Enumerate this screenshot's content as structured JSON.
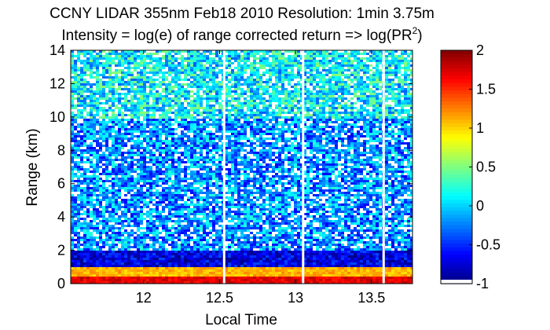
{
  "chart_data": {
    "type": "heatmap",
    "title": "CCNY LIDAR 355nm Feb18 2010 Resolution: 1min 3.75m",
    "subtitle_prefix": "Intensity = log(e) of range corrected return => log(PR",
    "subtitle_superscript": "2",
    "subtitle_suffix": ")",
    "xlabel": "Local Time",
    "ylabel": "Range (km)",
    "xlim": [
      11.52,
      13.77
    ],
    "ylim": [
      0,
      14
    ],
    "xticks": [
      {
        "value": 12.0,
        "label": "12"
      },
      {
        "value": 12.5,
        "label": "12.5"
      },
      {
        "value": 13.0,
        "label": "13"
      },
      {
        "value": 13.5,
        "label": "13.5"
      }
    ],
    "yticks": [
      {
        "value": 0,
        "label": "0"
      },
      {
        "value": 2,
        "label": "2"
      },
      {
        "value": 4,
        "label": "4"
      },
      {
        "value": 6,
        "label": "6"
      },
      {
        "value": 8,
        "label": "8"
      },
      {
        "value": 10,
        "label": "10"
      },
      {
        "value": 12,
        "label": "12"
      },
      {
        "value": 14,
        "label": "14"
      }
    ],
    "data_gaps_x": [
      12.53,
      13.05,
      13.58
    ],
    "colorbar": {
      "colormap": "jet",
      "range": [
        -1,
        2
      ],
      "ticks": [
        {
          "value": 2,
          "label": "2"
        },
        {
          "value": 1.5,
          "label": "1.5"
        },
        {
          "value": 1,
          "label": "1"
        },
        {
          "value": 0.5,
          "label": "0.5"
        },
        {
          "value": 0,
          "label": "0"
        },
        {
          "value": -0.5,
          "label": "-0.5"
        },
        {
          "value": -1,
          "label": "-1"
        }
      ]
    },
    "layers": {
      "boundary_layer_top_km": 1.0,
      "surface_layer_value": 1.7,
      "aerosol_layer_value": 1.1,
      "mid_range_value": -0.2,
      "upper_range_value": 0.1,
      "elevated_aerosol_top_km": 2.0
    }
  }
}
